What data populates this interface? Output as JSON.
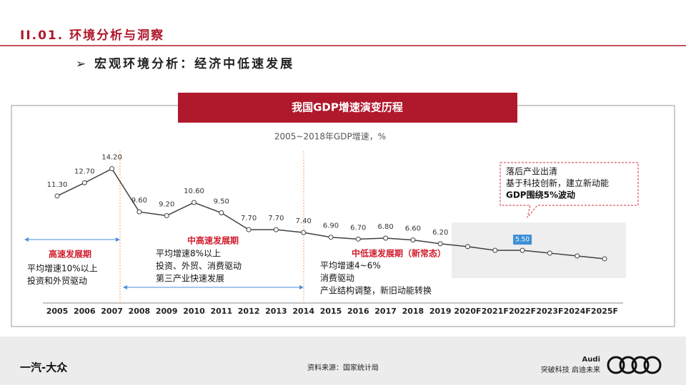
{
  "header": {
    "title": "II.01. 环境分析与洞察",
    "subtitle": "➢ 宏观环境分析：经济中低速发展"
  },
  "chart_data": {
    "type": "line",
    "title": "我国GDP增速演变历程",
    "subtitle": "2005~2018年GDP增速，%",
    "categories": [
      "2005",
      "2006",
      "2007",
      "2008",
      "2009",
      "2010",
      "2011",
      "2012",
      "2013",
      "2014",
      "2015",
      "2016",
      "2017",
      "2018",
      "2019",
      "2020F",
      "2021F",
      "2022F",
      "2023F",
      "2024F",
      "2025F"
    ],
    "values": [
      11.3,
      12.7,
      14.2,
      9.6,
      9.2,
      10.6,
      9.5,
      7.7,
      7.7,
      7.4,
      6.9,
      6.7,
      6.8,
      6.6,
      6.2,
      5.9,
      5.5,
      5.5,
      5.2,
      4.9,
      4.6
    ],
    "value_labels": [
      "11.30",
      "12.70",
      "14.20",
      "9.60",
      "9.20",
      "10.60",
      "9.50",
      "7.70",
      "7.70",
      "7.40",
      "6.90",
      "6.70",
      "6.80",
      "6.60",
      "6.20",
      null,
      null,
      "5.50",
      null,
      null,
      null
    ],
    "color": "#404040",
    "ylim": [
      3,
      16
    ]
  },
  "annotations": [
    {
      "title": "高速发展期",
      "lines": [
        "平均增速10%以上",
        "投资和外贸驱动"
      ]
    },
    {
      "title": "中高速发展期",
      "lines": [
        "平均增速8%以上",
        "投资、外贸、消费驱动",
        "第三产业快速发展"
      ]
    },
    {
      "title": "中低速发展期（新常态）",
      "lines": [
        "平均增速4~6%",
        "消费驱动",
        "产业结构调整，新旧动能转换"
      ]
    }
  ],
  "callout": {
    "lines": [
      "落后产业出清",
      "基于科技创新，建立新动能",
      "GDP围绕5%波动"
    ]
  },
  "footer": {
    "source": "资料来源：国家统计局",
    "logo": "一汽-大众",
    "brand": "Audi",
    "slogan": "突破科技 启迪未来"
  }
}
